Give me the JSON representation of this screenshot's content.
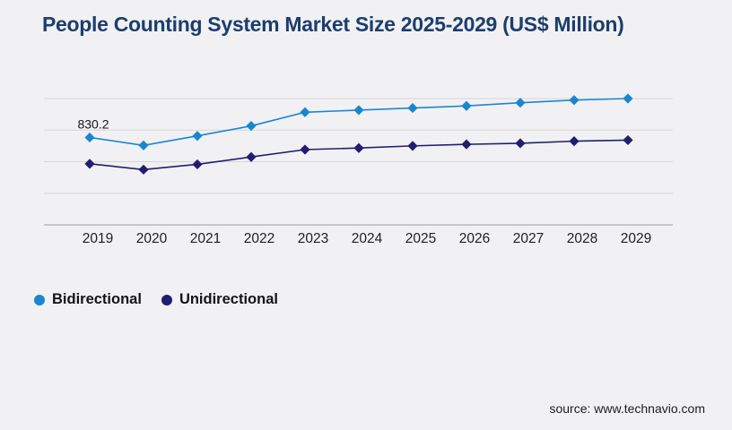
{
  "title": "People Counting System Market Size 2025-2029 (US$ Million)",
  "source": "source: www.technavio.com",
  "colors": {
    "background": "#f1f1f3",
    "title": "#1c3e6d",
    "gridline": "#d7d7da",
    "axis": "#aeaeb3",
    "tick_label": "#1f1f1f",
    "data_label": "#141414",
    "bidirectional": "#1a86d0",
    "unidirectional": "#211d70"
  },
  "legend": [
    {
      "label": "Bidirectional",
      "color": "#1a86d0"
    },
    {
      "label": "Unidirectional",
      "color": "#211d70"
    }
  ],
  "chart_data": {
    "type": "line",
    "title": "People Counting System Market Size 2025-2029 (US$ Million)",
    "categories": [
      "2019",
      "2020",
      "2021",
      "2022",
      "2023",
      "2024",
      "2025",
      "2026",
      "2027",
      "2028",
      "2029"
    ],
    "series": [
      {
        "name": "Bidirectional",
        "color": "#1a86d0",
        "marker": "diamond",
        "values": [
          830.2,
          755,
          845,
          940,
          1070,
          1090,
          1110,
          1130,
          1160,
          1185,
          1200
        ]
      },
      {
        "name": "Unidirectional",
        "color": "#211d70",
        "marker": "diamond",
        "values": [
          580,
          525,
          575,
          645,
          715,
          730,
          750,
          765,
          775,
          795,
          805
        ]
      }
    ],
    "data_labels": [
      {
        "series": "Bidirectional",
        "category": "2019",
        "text": "830.2"
      }
    ],
    "xlabel": "",
    "ylabel": "",
    "ylim": [
      0,
      1200
    ],
    "gridline_values": [
      0,
      300,
      600,
      900,
      1200
    ],
    "grid": "horizontal",
    "y_axis_labels_visible": false,
    "legend_position": "bottom-left"
  }
}
